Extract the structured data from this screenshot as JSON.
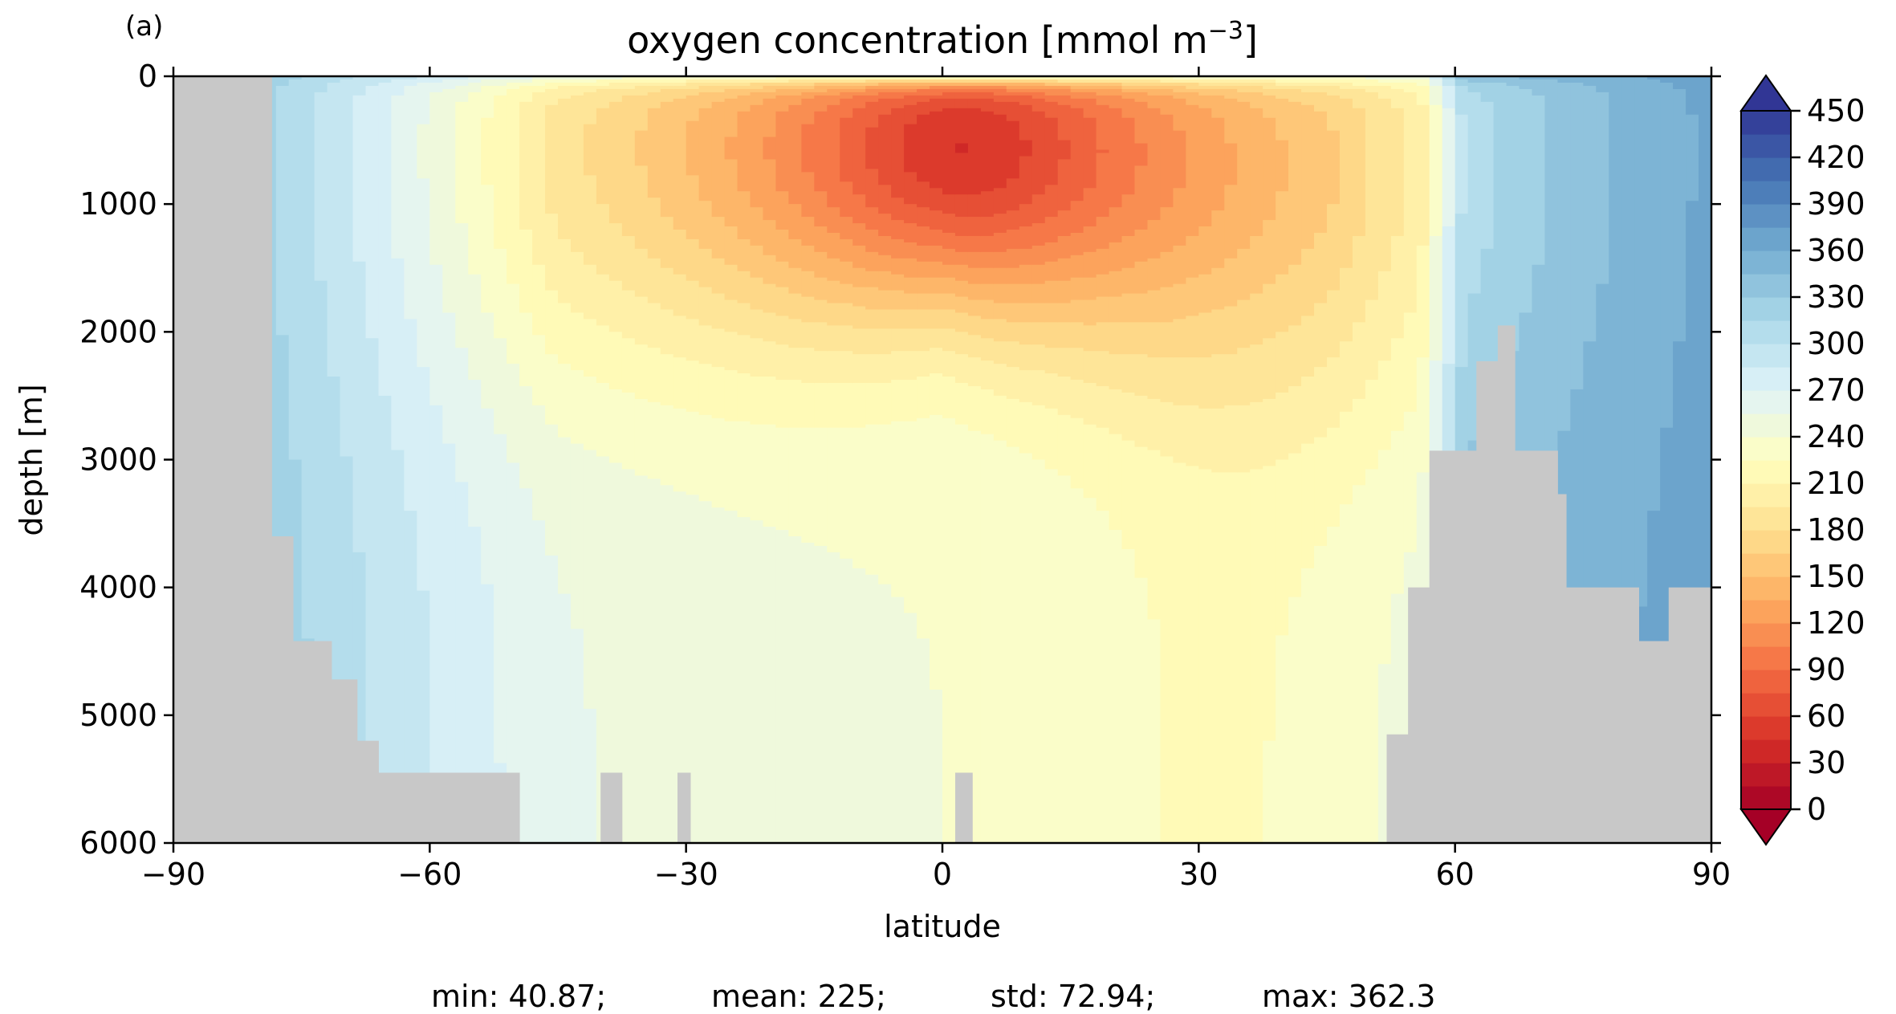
{
  "panel_label": "(a)",
  "chart_data": {
    "type": "heatmap",
    "title": "oxygen concentration [mmol m",
    "title_superscript": "−3",
    "title_suffix": "]",
    "xlabel": "latitude",
    "ylabel": "depth [m]",
    "xlim": [
      -90,
      90
    ],
    "ylim": [
      6000,
      0
    ],
    "y_inverted": true,
    "x_ticks": [
      -90,
      -60,
      -30,
      0,
      30,
      60,
      90
    ],
    "x_tick_labels": [
      "−90",
      "−60",
      "−30",
      "0",
      "30",
      "60",
      "90"
    ],
    "y_ticks": [
      0,
      1000,
      2000,
      3000,
      4000,
      5000,
      6000
    ],
    "y_tick_labels": [
      "0",
      "1000",
      "2000",
      "3000",
      "4000",
      "5000",
      "6000"
    ],
    "grid": false,
    "colormap": "RdYlBu",
    "mask_color": "#c8c8c8",
    "colorbar": {
      "min": 0,
      "max": 450,
      "step": 15,
      "extend": "both",
      "ticks": [
        0,
        30,
        60,
        90,
        120,
        150,
        180,
        210,
        240,
        270,
        300,
        330,
        360,
        390,
        420,
        450
      ],
      "tick_labels": [
        "0",
        "30",
        "60",
        "90",
        "120",
        "150",
        "180",
        "210",
        "240",
        "270",
        "300",
        "330",
        "360",
        "390",
        "420",
        "450"
      ],
      "placement": "right"
    },
    "land_mask": [
      {
        "lat_from": -90,
        "lat_to": -78.5,
        "depth_from": 0,
        "depth_to": 6000
      },
      {
        "lat_from": -78.5,
        "lat_to": -76,
        "depth_from": 3600,
        "depth_to": 6000
      },
      {
        "lat_from": -76,
        "lat_to": -71.5,
        "depth_from": 4420,
        "depth_to": 6000
      },
      {
        "lat_from": -71.5,
        "lat_to": -68.5,
        "depth_from": 4720,
        "depth_to": 6000
      },
      {
        "lat_from": -68.5,
        "lat_to": -66,
        "depth_from": 5200,
        "depth_to": 6000
      },
      {
        "lat_from": -66,
        "lat_to": -49.5,
        "depth_from": 5450,
        "depth_to": 6000
      },
      {
        "lat_from": -40,
        "lat_to": -37.5,
        "depth_from": 5450,
        "depth_to": 6000
      },
      {
        "lat_from": -31,
        "lat_to": -29.5,
        "depth_from": 5450,
        "depth_to": 6000
      },
      {
        "lat_from": 1.5,
        "lat_to": 3.5,
        "depth_from": 5450,
        "depth_to": 6000
      },
      {
        "lat_from": 52,
        "lat_to": 54.5,
        "depth_from": 5150,
        "depth_to": 6000
      },
      {
        "lat_from": 54.5,
        "lat_to": 57,
        "depth_from": 4000,
        "depth_to": 6000
      },
      {
        "lat_from": 57,
        "lat_to": 62.5,
        "depth_from": 2930,
        "depth_to": 6000
      },
      {
        "lat_from": 62.5,
        "lat_to": 65,
        "depth_from": 2230,
        "depth_to": 6000
      },
      {
        "lat_from": 65,
        "lat_to": 67,
        "depth_from": 1950,
        "depth_to": 6000
      },
      {
        "lat_from": 67,
        "lat_to": 72,
        "depth_from": 2930,
        "depth_to": 6000
      },
      {
        "lat_from": 72,
        "lat_to": 73,
        "depth_from": 3270,
        "depth_to": 6000
      },
      {
        "lat_from": 73,
        "lat_to": 77,
        "depth_from": 4000,
        "depth_to": 6000
      },
      {
        "lat_from": 77,
        "lat_to": 81.5,
        "depth_from": 4000,
        "depth_to": 6000
      },
      {
        "lat_from": 81.5,
        "lat_to": 85,
        "depth_from": 4420,
        "depth_to": 6000
      },
      {
        "lat_from": 85,
        "lat_to": 90,
        "depth_from": 4000,
        "depth_to": 6000
      }
    ],
    "stats": {
      "min": "min: 40.87;",
      "mean": "mean: 225;",
      "std": "std: 72.94;",
      "max": "max: 362.3"
    }
  }
}
